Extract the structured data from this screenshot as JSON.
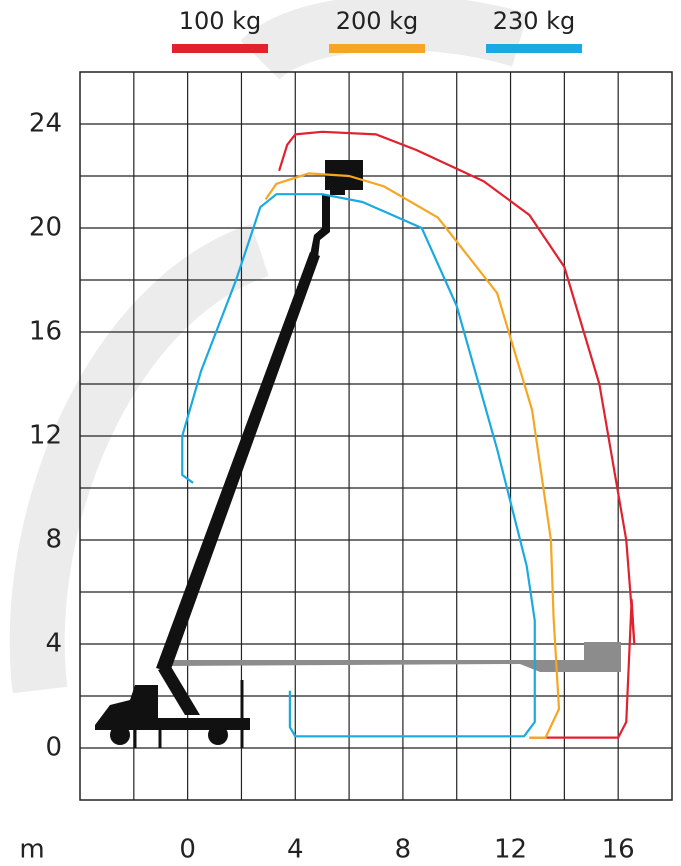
{
  "chart_data": {
    "type": "line",
    "x_label": "m",
    "xlim": [
      -4,
      18
    ],
    "xticks": [
      0,
      4,
      8,
      12,
      16
    ],
    "ylim": [
      -2,
      26
    ],
    "yticks": [
      0,
      4,
      8,
      12,
      16,
      20,
      24
    ],
    "grid": true,
    "series": [
      {
        "name": "100 kg",
        "color": "#e0222e",
        "x": [
          12.7,
          16,
          16.3,
          16.5,
          16.6,
          16.3,
          15.3,
          14,
          12.7,
          11,
          8.5,
          7,
          5,
          4,
          3.7,
          3.4
        ],
        "values": [
          0.4,
          0.4,
          1,
          5.7,
          4,
          8,
          14,
          18.5,
          20.5,
          21.8,
          23,
          23.6,
          23.7,
          23.6,
          23.2,
          22.2
        ]
      },
      {
        "name": "200 kg",
        "color": "#f5a623",
        "x": [
          12.7,
          13.3,
          13.8,
          13.6,
          13.5,
          12.8,
          11.5,
          9.3,
          7.3,
          6,
          4.5,
          3.3,
          2.9
        ],
        "values": [
          0.4,
          0.4,
          1.5,
          5,
          8,
          13,
          17.5,
          20.4,
          21.6,
          22,
          22.1,
          21.7,
          21.1
        ]
      },
      {
        "name": "230 kg",
        "color": "#1ba9e1",
        "x": [
          0.2,
          -0.2,
          -0.2,
          0.5,
          1.8,
          2.7,
          3.3,
          5,
          6.5,
          8.7,
          10,
          11.5,
          12.6,
          12.9,
          12.9,
          12.5,
          4,
          3.8,
          3.8
        ],
        "values": [
          10.2,
          10.5,
          12,
          14.5,
          18,
          20.8,
          21.3,
          21.3,
          21,
          20,
          17,
          11.5,
          7,
          4.9,
          1,
          0.45,
          0.45,
          0.8,
          2.2
        ]
      }
    ]
  }
}
